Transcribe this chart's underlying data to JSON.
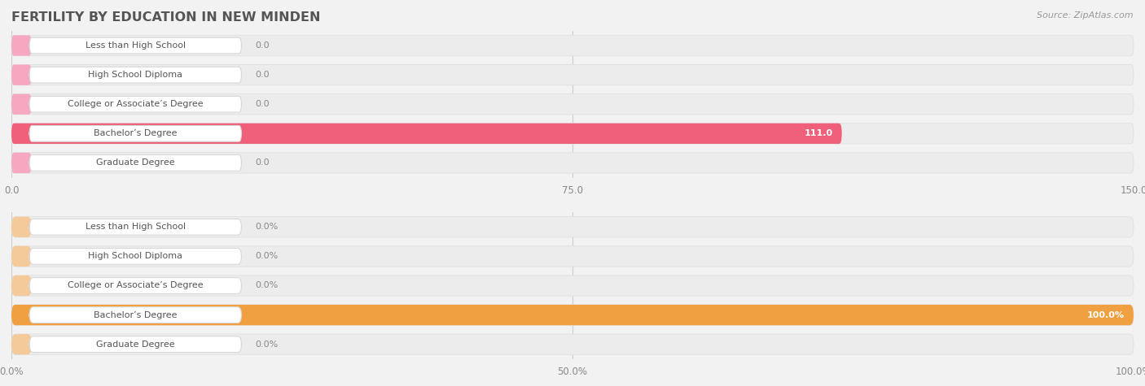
{
  "title": "FERTILITY BY EDUCATION IN NEW MINDEN",
  "source": "Source: ZipAtlas.com",
  "background_color": "#f2f2f2",
  "top_chart": {
    "categories": [
      "Less than High School",
      "High School Diploma",
      "College or Associate’s Degree",
      "Bachelor’s Degree",
      "Graduate Degree"
    ],
    "values": [
      0.0,
      0.0,
      0.0,
      111.0,
      0.0
    ],
    "xlim": [
      0,
      150
    ],
    "xticks": [
      0.0,
      75.0,
      150.0
    ],
    "xtick_labels": [
      "0.0",
      "75.0",
      "150.0"
    ],
    "bar_color_normal": "#f5a8c0",
    "bar_color_highlight": "#f0607a",
    "value_color_normal": "#888888",
    "value_color_highlight": "#ffffff",
    "highlight_index": 3
  },
  "bottom_chart": {
    "categories": [
      "Less than High School",
      "High School Diploma",
      "College or Associate’s Degree",
      "Bachelor’s Degree",
      "Graduate Degree"
    ],
    "values": [
      0.0,
      0.0,
      0.0,
      100.0,
      0.0
    ],
    "xlim": [
      0,
      100
    ],
    "xticks": [
      0.0,
      50.0,
      100.0
    ],
    "xtick_labels": [
      "0.0%",
      "50.0%",
      "100.0%"
    ],
    "bar_color_normal": "#f5ca9a",
    "bar_color_highlight": "#f0a040",
    "value_color_normal": "#888888",
    "value_color_highlight": "#ffffff",
    "highlight_index": 3
  }
}
